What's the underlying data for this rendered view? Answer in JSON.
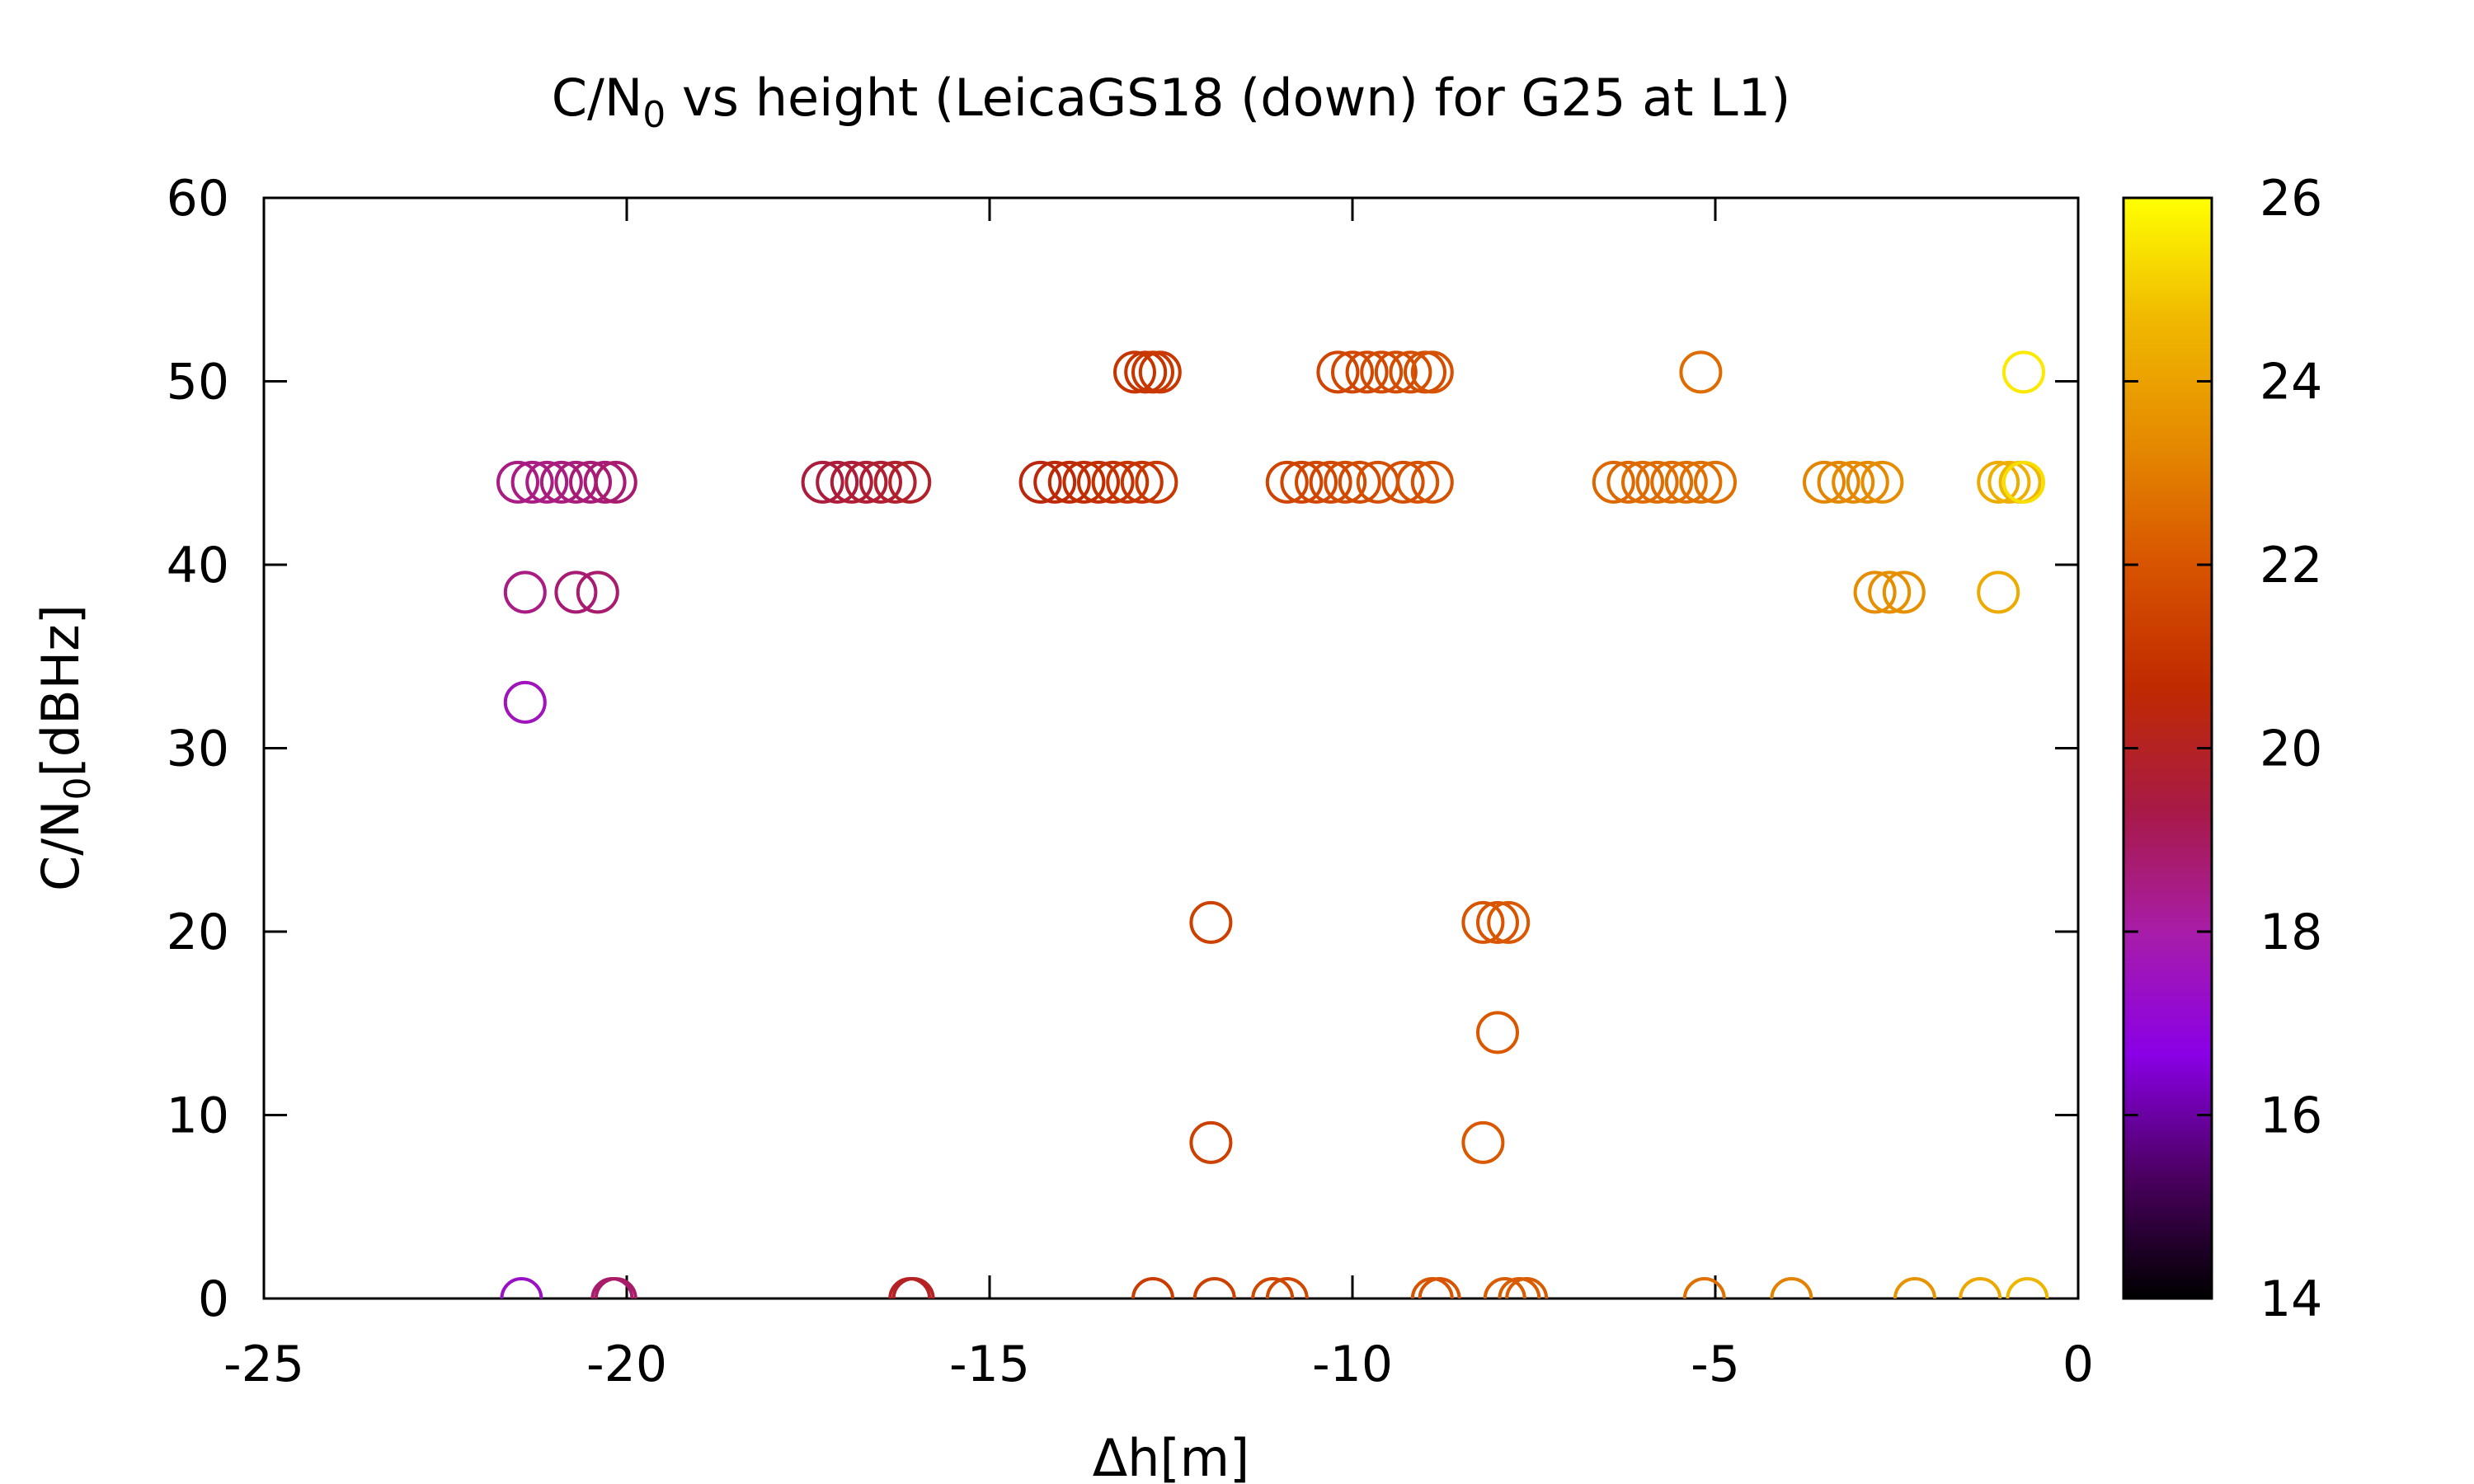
{
  "chart_data": {
    "type": "scatter",
    "title": "C/N",
    "title_sub": "0",
    "title_rest": " vs height (LeicaGS18 (down) for G25 at L1)",
    "xlabel": "Δh[m]",
    "ylabel": "C/N",
    "ylabel_sub": "0",
    "ylabel_rest": "[dBHz]",
    "xlim": [
      -25,
      0
    ],
    "ylim": [
      0,
      60
    ],
    "xticks": [
      -25,
      -20,
      -15,
      -10,
      -5,
      0
    ],
    "xtick_labels": [
      "-25",
      "-20",
      "-15",
      "-10",
      "-5",
      "0"
    ],
    "yticks": [
      0,
      10,
      20,
      30,
      40,
      50,
      60
    ],
    "ytick_labels": [
      "0",
      "10",
      "20",
      "30",
      "40",
      "50",
      "60"
    ],
    "colorbar": {
      "range": [
        14,
        26
      ],
      "ticks": [
        14,
        16,
        18,
        20,
        22,
        24,
        26
      ],
      "tick_labels": [
        "14",
        "16",
        "18",
        "20",
        "22",
        "24",
        "26"
      ],
      "stops": [
        "#000000",
        "#4b0060",
        "#8a00e6",
        "#a81da8",
        "#a81a46",
        "#c02a00",
        "#d85400",
        "#e58a00",
        "#f0b800",
        "#ffff00"
      ]
    },
    "marker": "open-circle",
    "points": [
      {
        "x": -21.5,
        "y": 44.5,
        "z": 18.5
      },
      {
        "x": -21.3,
        "y": 44.5,
        "z": 18.5
      },
      {
        "x": -21.1,
        "y": 44.5,
        "z": 18.5
      },
      {
        "x": -20.9,
        "y": 44.5,
        "z": 18.6
      },
      {
        "x": -20.7,
        "y": 44.5,
        "z": 18.6
      },
      {
        "x": -20.5,
        "y": 44.5,
        "z": 18.7
      },
      {
        "x": -20.3,
        "y": 44.5,
        "z": 18.7
      },
      {
        "x": -20.15,
        "y": 44.5,
        "z": 18.8
      },
      {
        "x": -21.4,
        "y": 38.5,
        "z": 18.5
      },
      {
        "x": -20.7,
        "y": 38.5,
        "z": 18.7
      },
      {
        "x": -20.4,
        "y": 38.5,
        "z": 18.8
      },
      {
        "x": -21.4,
        "y": 32.5,
        "z": 17.6
      },
      {
        "x": -21.45,
        "y": 0,
        "z": 17.4
      },
      {
        "x": -20.2,
        "y": 0,
        "z": 18.8
      },
      {
        "x": -20.15,
        "y": 0,
        "z": 18.9
      },
      {
        "x": -17.3,
        "y": 44.5,
        "z": 19.5
      },
      {
        "x": -17.1,
        "y": 44.5,
        "z": 19.5
      },
      {
        "x": -16.9,
        "y": 44.5,
        "z": 19.6
      },
      {
        "x": -16.7,
        "y": 44.5,
        "z": 19.7
      },
      {
        "x": -16.5,
        "y": 44.5,
        "z": 19.7
      },
      {
        "x": -16.3,
        "y": 44.5,
        "z": 19.8
      },
      {
        "x": -16.1,
        "y": 44.5,
        "z": 19.9
      },
      {
        "x": -16.1,
        "y": 0,
        "z": 20.0
      },
      {
        "x": -16.05,
        "y": 0,
        "z": 20.0
      },
      {
        "x": -14.3,
        "y": 44.5,
        "z": 20.4
      },
      {
        "x": -14.1,
        "y": 44.5,
        "z": 20.5
      },
      {
        "x": -13.9,
        "y": 44.5,
        "z": 20.6
      },
      {
        "x": -13.7,
        "y": 44.5,
        "z": 20.7
      },
      {
        "x": -13.5,
        "y": 44.5,
        "z": 20.8
      },
      {
        "x": -13.3,
        "y": 44.5,
        "z": 20.9
      },
      {
        "x": -13.1,
        "y": 44.5,
        "z": 21.0
      },
      {
        "x": -12.9,
        "y": 44.5,
        "z": 21.0
      },
      {
        "x": -12.7,
        "y": 44.5,
        "z": 21.1
      },
      {
        "x": -13.0,
        "y": 50.5,
        "z": 21.0
      },
      {
        "x": -12.85,
        "y": 50.5,
        "z": 21.0
      },
      {
        "x": -12.75,
        "y": 50.5,
        "z": 21.1
      },
      {
        "x": -12.65,
        "y": 50.5,
        "z": 21.1
      },
      {
        "x": -12.75,
        "y": 0,
        "z": 21.2
      },
      {
        "x": -11.95,
        "y": 20.5,
        "z": 21.4
      },
      {
        "x": -11.95,
        "y": 8.5,
        "z": 21.4
      },
      {
        "x": -11.9,
        "y": 0,
        "z": 21.4
      },
      {
        "x": -11.1,
        "y": 0,
        "z": 21.6
      },
      {
        "x": -10.9,
        "y": 0,
        "z": 21.6
      },
      {
        "x": -10.9,
        "y": 44.5,
        "z": 21.5
      },
      {
        "x": -10.7,
        "y": 44.5,
        "z": 21.5
      },
      {
        "x": -10.5,
        "y": 44.5,
        "z": 21.6
      },
      {
        "x": -10.3,
        "y": 44.5,
        "z": 21.6
      },
      {
        "x": -10.1,
        "y": 44.5,
        "z": 21.7
      },
      {
        "x": -9.9,
        "y": 44.5,
        "z": 21.7
      },
      {
        "x": -9.65,
        "y": 44.5,
        "z": 21.8
      },
      {
        "x": -9.3,
        "y": 44.5,
        "z": 21.8
      },
      {
        "x": -9.1,
        "y": 44.5,
        "z": 21.9
      },
      {
        "x": -8.9,
        "y": 44.5,
        "z": 21.9
      },
      {
        "x": -10.2,
        "y": 50.5,
        "z": 21.5
      },
      {
        "x": -10.0,
        "y": 50.5,
        "z": 21.6
      },
      {
        "x": -9.8,
        "y": 50.5,
        "z": 21.6
      },
      {
        "x": -9.6,
        "y": 50.5,
        "z": 21.7
      },
      {
        "x": -9.4,
        "y": 50.5,
        "z": 21.7
      },
      {
        "x": -9.2,
        "y": 50.5,
        "z": 21.8
      },
      {
        "x": -9.0,
        "y": 50.5,
        "z": 21.8
      },
      {
        "x": -8.9,
        "y": 50.5,
        "z": 21.9
      },
      {
        "x": -8.9,
        "y": 0,
        "z": 22.0
      },
      {
        "x": -8.8,
        "y": 0,
        "z": 22.0
      },
      {
        "x": -8.2,
        "y": 20.5,
        "z": 22.0
      },
      {
        "x": -8.0,
        "y": 20.5,
        "z": 22.0
      },
      {
        "x": -7.85,
        "y": 20.5,
        "z": 22.1
      },
      {
        "x": -8.0,
        "y": 14.5,
        "z": 22.1
      },
      {
        "x": -8.2,
        "y": 8.5,
        "z": 22.1
      },
      {
        "x": -7.9,
        "y": 0,
        "z": 22.2
      },
      {
        "x": -7.7,
        "y": 0,
        "z": 22.2
      },
      {
        "x": -7.6,
        "y": 0,
        "z": 22.2
      },
      {
        "x": -6.4,
        "y": 44.5,
        "z": 22.5
      },
      {
        "x": -6.2,
        "y": 44.5,
        "z": 22.5
      },
      {
        "x": -6.0,
        "y": 44.5,
        "z": 22.6
      },
      {
        "x": -5.8,
        "y": 44.5,
        "z": 22.6
      },
      {
        "x": -5.6,
        "y": 44.5,
        "z": 22.6
      },
      {
        "x": -5.4,
        "y": 44.5,
        "z": 22.7
      },
      {
        "x": -5.2,
        "y": 44.5,
        "z": 22.7
      },
      {
        "x": -5.0,
        "y": 44.5,
        "z": 22.7
      },
      {
        "x": -5.2,
        "y": 50.5,
        "z": 22.6
      },
      {
        "x": -5.15,
        "y": 0,
        "z": 22.7
      },
      {
        "x": -3.95,
        "y": 0,
        "z": 23.1
      },
      {
        "x": -3.5,
        "y": 44.5,
        "z": 23.2
      },
      {
        "x": -3.3,
        "y": 44.5,
        "z": 23.2
      },
      {
        "x": -3.1,
        "y": 44.5,
        "z": 23.3
      },
      {
        "x": -2.9,
        "y": 44.5,
        "z": 23.3
      },
      {
        "x": -2.7,
        "y": 44.5,
        "z": 23.4
      },
      {
        "x": -2.8,
        "y": 38.5,
        "z": 23.4
      },
      {
        "x": -2.6,
        "y": 38.5,
        "z": 23.5
      },
      {
        "x": -2.4,
        "y": 38.5,
        "z": 23.5
      },
      {
        "x": -2.25,
        "y": 0,
        "z": 23.6
      },
      {
        "x": -1.35,
        "y": 0,
        "z": 24.2
      },
      {
        "x": -1.1,
        "y": 38.5,
        "z": 24.3
      },
      {
        "x": -1.1,
        "y": 44.5,
        "z": 24.3
      },
      {
        "x": -0.95,
        "y": 44.5,
        "z": 24.4
      },
      {
        "x": -0.8,
        "y": 44.5,
        "z": 24.6
      },
      {
        "x": -0.7,
        "y": 0,
        "z": 24.6
      },
      {
        "x": -0.75,
        "y": 44.5,
        "z": 25.4
      },
      {
        "x": -0.75,
        "y": 50.5,
        "z": 25.6
      }
    ]
  }
}
